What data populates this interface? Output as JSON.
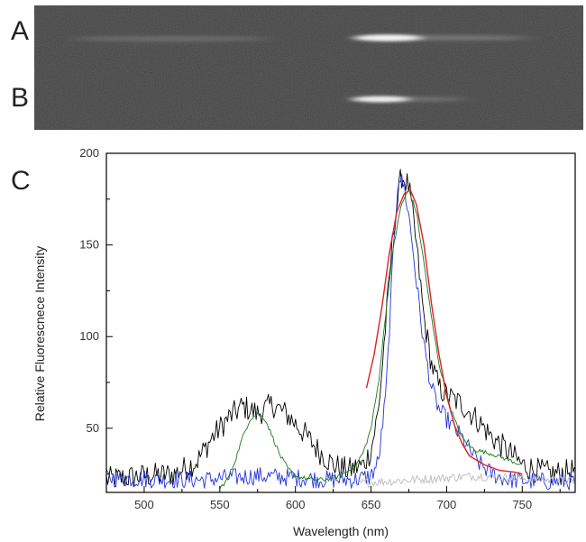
{
  "panel_labels": {
    "a": "A",
    "b": "B",
    "c": "C"
  },
  "chart_data": {
    "type": "line",
    "xlabel": "Wavelength (nm)",
    "ylabel": "Relative Fluorescnece Intensity",
    "xlim": [
      475,
      785
    ],
    "ylim": [
      15,
      200
    ],
    "x_ticks": [
      500,
      550,
      600,
      650,
      700,
      750
    ],
    "y_ticks": [
      50,
      100,
      150,
      200
    ],
    "grid": false,
    "series": [
      {
        "color": "#000000",
        "noise": 7,
        "points": [
          [
            475,
            22
          ],
          [
            500,
            24
          ],
          [
            520,
            25
          ],
          [
            535,
            32
          ],
          [
            545,
            45
          ],
          [
            555,
            55
          ],
          [
            565,
            62
          ],
          [
            575,
            58
          ],
          [
            585,
            63
          ],
          [
            595,
            57
          ],
          [
            605,
            48
          ],
          [
            615,
            38
          ],
          [
            625,
            30
          ],
          [
            635,
            27
          ],
          [
            645,
            30
          ],
          [
            650,
            38
          ],
          [
            655,
            60
          ],
          [
            660,
            110
          ],
          [
            665,
            160
          ],
          [
            670,
            188
          ],
          [
            675,
            182
          ],
          [
            680,
            150
          ],
          [
            685,
            110
          ],
          [
            690,
            85
          ],
          [
            695,
            72
          ],
          [
            700,
            68
          ],
          [
            710,
            63
          ],
          [
            720,
            55
          ],
          [
            730,
            45
          ],
          [
            740,
            38
          ],
          [
            750,
            30
          ],
          [
            760,
            27
          ],
          [
            770,
            25
          ],
          [
            785,
            27
          ]
        ]
      },
      {
        "color": "#2233dd",
        "noise": 5,
        "points": [
          [
            475,
            23
          ],
          [
            520,
            22
          ],
          [
            540,
            22
          ],
          [
            555,
            23
          ],
          [
            575,
            24
          ],
          [
            600,
            23
          ],
          [
            620,
            22
          ],
          [
            640,
            22
          ],
          [
            650,
            24
          ],
          [
            655,
            32
          ],
          [
            660,
            70
          ],
          [
            665,
            150
          ],
          [
            668,
            188
          ],
          [
            672,
            182
          ],
          [
            676,
            160
          ],
          [
            680,
            130
          ],
          [
            685,
            95
          ],
          [
            690,
            72
          ],
          [
            695,
            60
          ],
          [
            700,
            55
          ],
          [
            710,
            45
          ],
          [
            720,
            32
          ],
          [
            730,
            25
          ],
          [
            740,
            22
          ],
          [
            760,
            21
          ],
          [
            785,
            21
          ]
        ]
      },
      {
        "color": "#bbbbbb",
        "noise": 2.5,
        "points": [
          [
            640,
            20
          ],
          [
            660,
            21
          ],
          [
            680,
            22
          ],
          [
            700,
            23
          ],
          [
            720,
            24
          ],
          [
            740,
            23
          ],
          [
            760,
            22
          ],
          [
            785,
            21
          ]
        ]
      },
      {
        "color": "#1a7a1a",
        "noise": 1.2,
        "points": [
          [
            550,
            17
          ],
          [
            555,
            22
          ],
          [
            560,
            32
          ],
          [
            565,
            45
          ],
          [
            570,
            55
          ],
          [
            575,
            58
          ],
          [
            580,
            55
          ],
          [
            585,
            45
          ],
          [
            590,
            35
          ],
          [
            595,
            28
          ],
          [
            600,
            24
          ],
          [
            610,
            22
          ],
          [
            620,
            22
          ],
          [
            630,
            24
          ],
          [
            640,
            30
          ],
          [
            645,
            37
          ],
          [
            650,
            50
          ],
          [
            655,
            75
          ],
          [
            660,
            115
          ],
          [
            665,
            150
          ],
          [
            670,
            172
          ],
          [
            675,
            180
          ],
          [
            680,
            168
          ],
          [
            685,
            140
          ],
          [
            690,
            110
          ],
          [
            695,
            85
          ],
          [
            700,
            68
          ],
          [
            705,
            55
          ],
          [
            710,
            45
          ],
          [
            715,
            40
          ],
          [
            720,
            38
          ],
          [
            730,
            36
          ],
          [
            740,
            33
          ],
          [
            750,
            30
          ]
        ]
      },
      {
        "color": "#dd2222",
        "noise": 0,
        "points": [
          [
            647,
            72
          ],
          [
            652,
            90
          ],
          [
            657,
            115
          ],
          [
            662,
            145
          ],
          [
            667,
            168
          ],
          [
            672,
            178
          ],
          [
            676,
            180
          ],
          [
            680,
            172
          ],
          [
            685,
            150
          ],
          [
            690,
            118
          ],
          [
            695,
            90
          ],
          [
            700,
            68
          ],
          [
            705,
            52
          ],
          [
            710,
            42
          ],
          [
            715,
            35
          ],
          [
            725,
            30
          ],
          [
            735,
            27
          ],
          [
            745,
            26
          ],
          [
            750,
            25
          ]
        ]
      }
    ]
  }
}
